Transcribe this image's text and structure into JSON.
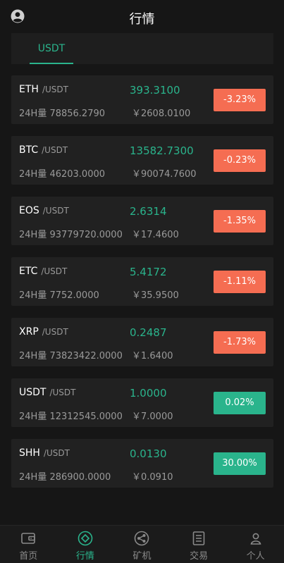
{
  "header": {
    "title": "行情"
  },
  "tabs": [
    {
      "label": "USDT",
      "active": true
    }
  ],
  "markets": [
    {
      "symbol": "ETH",
      "quote": "/USDT",
      "volume": "24H量 78856.2790",
      "price": "393.3100",
      "cny": "￥2608.0100",
      "change": "-3.23%",
      "direction": "down"
    },
    {
      "symbol": "BTC",
      "quote": "/USDT",
      "volume": "24H量 46203.0000",
      "price": "13582.7300",
      "cny": "￥90074.7600",
      "change": "-0.23%",
      "direction": "down"
    },
    {
      "symbol": "EOS",
      "quote": "/USDT",
      "volume": "24H量 93779720.0000",
      "price": "2.6314",
      "cny": "￥17.4600",
      "change": "-1.35%",
      "direction": "down"
    },
    {
      "symbol": "ETC",
      "quote": "/USDT",
      "volume": "24H量 7752.0000",
      "price": "5.4172",
      "cny": "￥35.9500",
      "change": "-1.11%",
      "direction": "down"
    },
    {
      "symbol": "XRP",
      "quote": "/USDT",
      "volume": "24H量 73823422.0000",
      "price": "0.2487",
      "cny": "￥1.6400",
      "change": "-1.73%",
      "direction": "down"
    },
    {
      "symbol": "USDT",
      "quote": "/USDT",
      "volume": "24H量 12312545.0000",
      "price": "1.0000",
      "cny": "￥7.0000",
      "change": "0.02%",
      "direction": "up"
    },
    {
      "symbol": "SHH",
      "quote": "/USDT",
      "volume": "24H量 286900.0000",
      "price": "0.0130",
      "cny": "￥0.0910",
      "change": "30.00%",
      "direction": "up"
    }
  ],
  "bottom_nav": [
    {
      "label": "首页",
      "icon": "wallet-icon",
      "active": false
    },
    {
      "label": "行情",
      "icon": "diamond-circle-icon",
      "active": true
    },
    {
      "label": "矿机",
      "icon": "share-nodes-icon",
      "active": false
    },
    {
      "label": "交易",
      "icon": "document-list-icon",
      "active": false
    },
    {
      "label": "个人",
      "icon": "person-icon",
      "active": false
    }
  ],
  "colors": {
    "accent": "#2ab48c",
    "down": "#f56d52",
    "background": "#161616",
    "card": "#212121"
  },
  "icons": {
    "profile": "user-circle-icon"
  }
}
